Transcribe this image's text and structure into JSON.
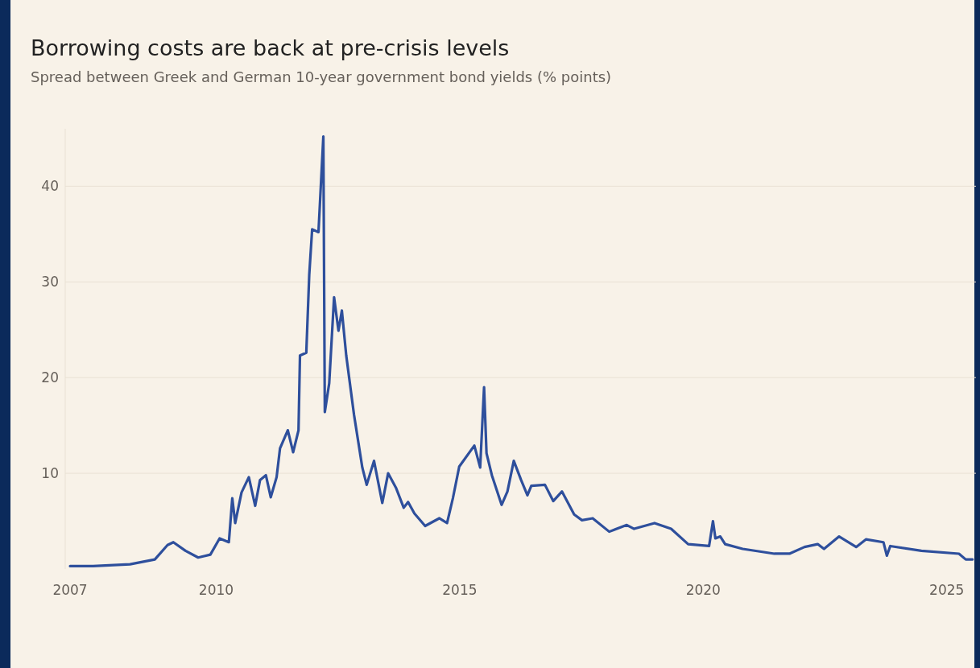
{
  "chart_data": {
    "type": "line",
    "title": "Borrowing costs are back at pre-crisis levels",
    "subtitle": "Spread between Greek and German 10-year government bond yields (% points)",
    "x": [
      2007.0,
      2007.47,
      2008.23,
      2008.74,
      2009.0,
      2009.12,
      2009.37,
      2009.63,
      2009.88,
      2010.07,
      2010.26,
      2010.33,
      2010.39,
      2010.52,
      2010.67,
      2010.8,
      2010.9,
      2011.02,
      2011.12,
      2011.24,
      2011.31,
      2011.47,
      2011.58,
      2011.69,
      2011.72,
      2011.85,
      2011.91,
      2011.97,
      2012.1,
      2012.2,
      2012.23,
      2012.32,
      2012.42,
      2012.51,
      2012.58,
      2012.67,
      2012.83,
      2013.0,
      2013.09,
      2013.24,
      2013.41,
      2013.53,
      2013.69,
      2013.85,
      2013.94,
      2014.07,
      2014.29,
      2014.58,
      2014.74,
      2014.86,
      2014.99,
      2015.3,
      2015.42,
      2015.5,
      2015.55,
      2015.66,
      2015.86,
      2015.98,
      2016.11,
      2016.26,
      2016.39,
      2016.47,
      2016.75,
      2016.92,
      2017.1,
      2017.35,
      2017.51,
      2017.73,
      2018.07,
      2018.43,
      2018.58,
      2019.0,
      2019.34,
      2019.69,
      2020.12,
      2020.2,
      2020.25,
      2020.35,
      2020.45,
      2020.81,
      2021.46,
      2021.77,
      2022.08,
      2022.35,
      2022.48,
      2022.79,
      2023.14,
      2023.34,
      2023.7,
      2023.77,
      2023.84,
      2024.48,
      2025.25,
      2025.39,
      2025.53
    ],
    "series": [
      {
        "color": "#2e4f9c",
        "values": [
          0.3,
          0.3,
          0.5,
          1.0,
          2.5,
          2.8,
          1.9,
          1.2,
          1.5,
          3.2,
          2.8,
          7.4,
          4.8,
          8.0,
          9.6,
          6.6,
          9.3,
          9.8,
          7.5,
          9.6,
          12.6,
          14.5,
          12.2,
          14.5,
          22.3,
          22.6,
          30.7,
          35.5,
          35.2,
          45.2,
          16.4,
          19.4,
          28.4,
          24.9,
          27.0,
          22.3,
          16.1,
          10.6,
          8.8,
          11.3,
          6.9,
          10.0,
          8.5,
          6.4,
          7.0,
          5.8,
          4.5,
          5.3,
          4.8,
          7.4,
          10.7,
          12.9,
          10.6,
          19.0,
          12.1,
          9.8,
          6.7,
          8.1,
          11.3,
          9.3,
          7.7,
          8.7,
          8.8,
          7.1,
          8.1,
          5.7,
          5.1,
          5.3,
          3.9,
          4.6,
          4.2,
          4.8,
          4.2,
          2.6,
          2.4,
          5.0,
          3.2,
          3.4,
          2.6,
          2.1,
          1.6,
          1.6,
          2.3,
          2.6,
          2.1,
          3.4,
          2.3,
          3.1,
          2.8,
          1.4,
          2.4,
          1.9,
          1.6,
          1.0,
          1.0
        ]
      }
    ],
    "xlim": [
      2006.9,
      2025.6
    ],
    "xticks": [
      2007,
      2010,
      2015,
      2020,
      2025
    ],
    "ylim": [
      0,
      46
    ],
    "yticks": [
      10,
      20,
      30,
      40
    ],
    "grid": "y",
    "marker": "none",
    "line_style": "solid"
  }
}
